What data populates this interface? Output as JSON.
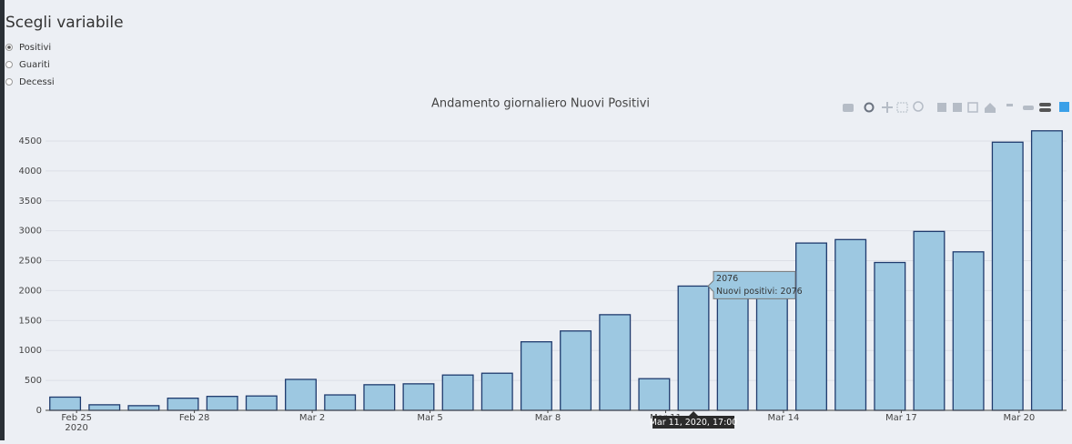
{
  "controls": {
    "title": "Scegli variabile",
    "options": [
      "Positivi",
      "Guariti",
      "Decessi"
    ],
    "selected": 0
  },
  "chart_data": {
    "type": "bar",
    "title": "Andamento giornaliero Nuovi Positivi",
    "x": [
      "2020-02-24 17:00",
      "2020-02-25 17:00",
      "2020-02-26 17:00",
      "2020-02-27 17:00",
      "2020-02-28 17:00",
      "2020-02-29 17:00",
      "2020-03-01 17:00",
      "2020-03-02 17:00",
      "2020-03-03 17:00",
      "2020-03-04 17:00",
      "2020-03-05 17:00",
      "2020-03-06 17:00",
      "2020-03-07 17:00",
      "2020-03-08 17:00",
      "2020-03-09 17:00",
      "2020-03-10 17:00",
      "2020-03-11 17:00",
      "2020-03-12 17:00",
      "2020-03-13 17:00",
      "2020-03-14 17:00",
      "2020-03-15 17:00",
      "2020-03-16 17:00",
      "2020-03-17 17:00",
      "2020-03-18 17:00",
      "2020-03-19 17:00",
      "2020-03-20 17:00"
    ],
    "values": [
      221,
      93,
      78,
      203,
      233,
      240,
      517,
      258,
      428,
      443,
      590,
      620,
      1145,
      1326,
      1598,
      529,
      2076,
      2249,
      2116,
      2795,
      2853,
      2470,
      2989,
      2648,
      4480,
      4670
    ],
    "color": "#9dc8e1",
    "edge_color": "#1f3b6e",
    "xlim": [
      "2020-02-24 05:00",
      "2020-03-21 05:00"
    ],
    "xticks": [
      {
        "value": "2020-02-25 00:00",
        "label": "Feb 25"
      },
      {
        "value": "2020-02-28 00:00",
        "label": "Feb 28"
      },
      {
        "value": "2020-03-02 00:00",
        "label": "Mar 2"
      },
      {
        "value": "2020-03-05 00:00",
        "label": "Mar 5"
      },
      {
        "value": "2020-03-08 00:00",
        "label": "Mar 8"
      },
      {
        "value": "2020-03-11 00:00",
        "label": "Mar 11"
      },
      {
        "value": "2020-03-14 00:00",
        "label": "Mar 14"
      },
      {
        "value": "2020-03-17 00:00",
        "label": "Mar 17"
      },
      {
        "value": "2020-03-20 00:00",
        "label": "Mar 20"
      }
    ],
    "x_year_label": "2020",
    "ylim": [
      0,
      4916
    ],
    "yticks": [
      0,
      500,
      1000,
      1500,
      2000,
      2500,
      3000,
      3500,
      4000,
      4500
    ],
    "grid": true,
    "hover": {
      "index": 16,
      "x_label": "Mar 11, 2020, 17:00",
      "text": "Nuovi positivi: 2076"
    }
  }
}
